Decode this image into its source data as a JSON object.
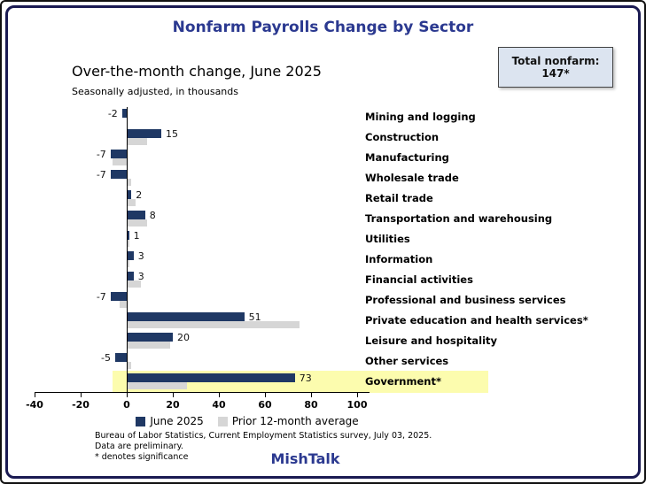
{
  "page": {
    "title": "Nonfarm Payrolls Change by Sector",
    "total_box": {
      "label": "Total nonfarm:",
      "value": "147*"
    },
    "subtitle": "Over-the-month change, June 2025",
    "subnote": "Seasonally adjusted, in thousands",
    "footer_lines": [
      "Bureau of Labor Statistics, Current Employment Statistics survey, July 03, 2025.",
      "Data are preliminary.",
      "* denotes significance"
    ],
    "brand": "MishTalk"
  },
  "chart_data": {
    "type": "bar",
    "orientation": "horizontal",
    "title": "Nonfarm Payrolls Change by Sector",
    "subtitle": "Over-the-month change, June 2025",
    "units": "thousands, seasonally adjusted",
    "categories": [
      "Mining and logging",
      "Construction",
      "Manufacturing",
      "Wholesale trade",
      "Retail trade",
      "Transportation and warehousing",
      "Utilities",
      "Information",
      "Financial activities",
      "Professional and business services",
      "Private education and health services*",
      "Leisure and hospitality",
      "Other services",
      "Government*"
    ],
    "series": [
      {
        "name": "June 2025",
        "color": "#1f3864",
        "values": [
          -2,
          15,
          -7,
          -7,
          2,
          8,
          1,
          3,
          3,
          -7,
          51,
          20,
          -5,
          73
        ]
      },
      {
        "name": "Prior 12-month average",
        "color": "#d6d6d6",
        "values": [
          0,
          9,
          -6,
          2,
          4,
          9,
          1,
          1,
          6,
          -3,
          75,
          19,
          2,
          26
        ]
      }
    ],
    "xlim": [
      -40,
      105
    ],
    "x_ticks": [
      -40,
      -20,
      0,
      20,
      40,
      60,
      80,
      100
    ],
    "grid": false,
    "legend_position": "bottom",
    "highlight_category": "Government*",
    "highlight_color": "#fcfcae",
    "total_annotation": "Total nonfarm: 147*"
  }
}
